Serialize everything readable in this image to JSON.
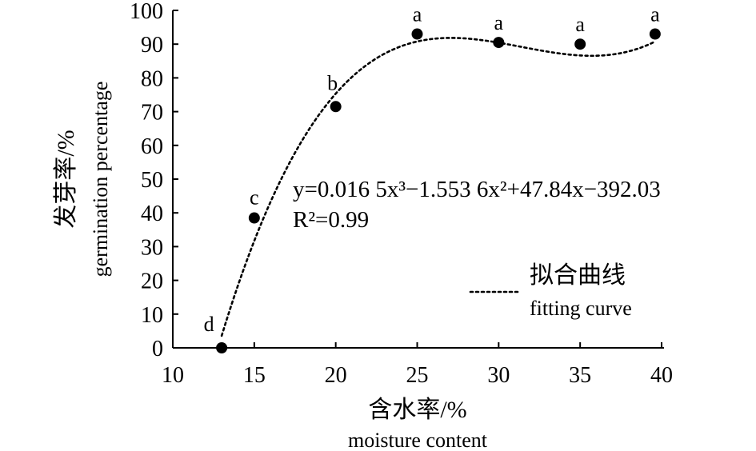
{
  "chart_data": {
    "type": "scatter",
    "xlabel_cn": "含水率/%",
    "xlabel_en": "moisture content",
    "ylabel_cn": "发芽率/%",
    "ylabel_en": "germination percentage",
    "xlim": [
      10,
      40
    ],
    "ylim": [
      0,
      100
    ],
    "xticks": [
      "10",
      "15",
      "20",
      "25",
      "30",
      "35",
      "40"
    ],
    "yticks": [
      "0",
      "10",
      "20",
      "30",
      "40",
      "50",
      "60",
      "70",
      "80",
      "90",
      "100"
    ],
    "points": [
      {
        "x": 13,
        "y": 0,
        "label": "d"
      },
      {
        "x": 15,
        "y": 38.5,
        "label": "c"
      },
      {
        "x": 20,
        "y": 71.5,
        "label": "b"
      },
      {
        "x": 25,
        "y": 93.0,
        "label": "a"
      },
      {
        "x": 30,
        "y": 90.5,
        "label": "a"
      },
      {
        "x": 35,
        "y": 90.0,
        "label": "a"
      },
      {
        "x": 39.6,
        "y": 93.0,
        "label": "a"
      }
    ],
    "fit": {
      "equation": "y=0.016 5x³−1.553 6x²+47.84x−392.03",
      "r2": "R²=0.99",
      "coefficients": [
        0.0165,
        -1.5536,
        47.84,
        -392.03
      ],
      "x_range": [
        13,
        39.6
      ],
      "style": "dotted"
    },
    "legend": {
      "label_cn": "拟合曲线",
      "label_en": "fitting curve",
      "position": "bottom-right"
    },
    "grid": false
  }
}
